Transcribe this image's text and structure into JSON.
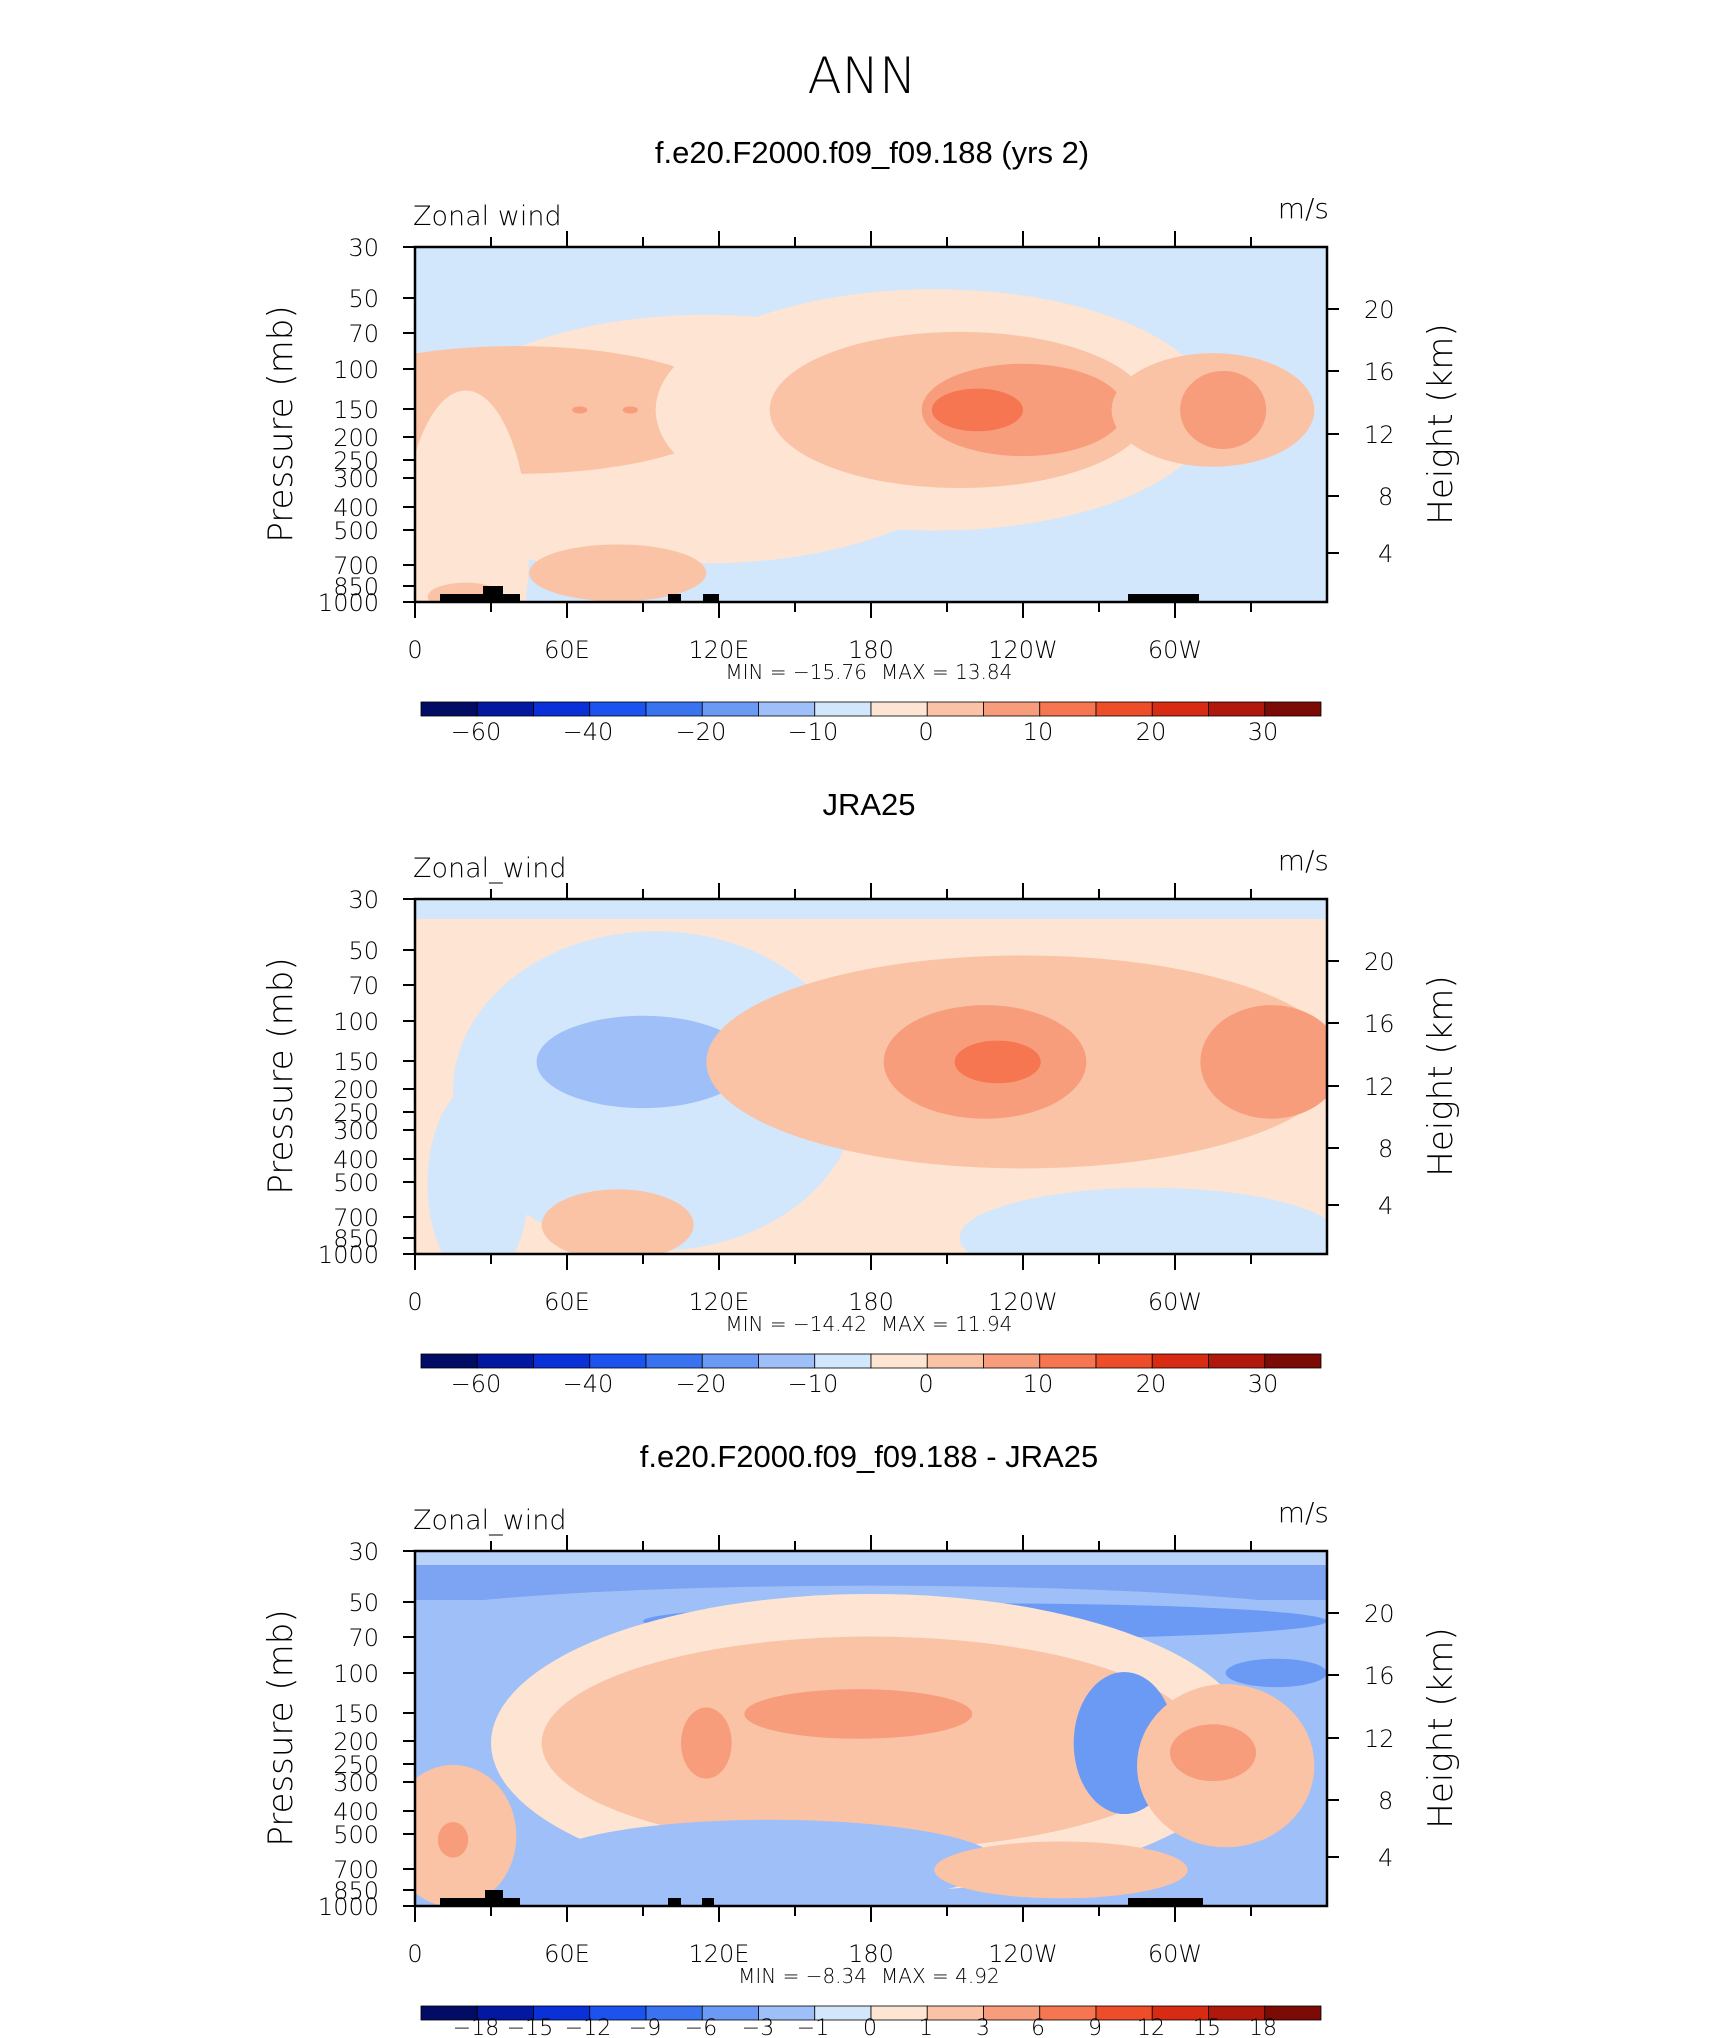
{
  "page_title": "ANN",
  "chart_data": [
    {
      "type": "heatmap",
      "title": "f.e20.F2000.f09_f09.188 (yrs 2)",
      "variable_label": "Zonal wind",
      "units": "m/s",
      "ylabel": "Pressure (mb)",
      "ylabel_right": "Height (km)",
      "x_ticks": [
        "0",
        "60E",
        "120E",
        "180",
        "120W",
        "60W"
      ],
      "y_ticks": [
        "30",
        "50",
        "70",
        "100",
        "150",
        "200",
        "250",
        "300",
        "400",
        "500",
        "700",
        "850",
        "1000"
      ],
      "y_ticks_right": [
        "20",
        "16",
        "12",
        "8",
        "4"
      ],
      "min": -15.76,
      "max": 13.84,
      "min_label": "MIN = −15.76",
      "max_label": "MAX = 13.84",
      "colorbar_labels": [
        "−60",
        "−40",
        "−20",
        "−10",
        "0",
        "10",
        "20",
        "30"
      ],
      "contour_fields": [
        {
          "level": 0,
          "longitude": 115,
          "pressure_mb": 200,
          "lon_width": 110,
          "pressure_depth": 0.35
        },
        {
          "level": 0,
          "longitude": 55,
          "pressure_mb": 400,
          "lon_width": 30,
          "pressure_depth": 0.15
        },
        {
          "level": 1,
          "longitude": 40,
          "pressure_mb": 150,
          "lon_width": 85,
          "pressure_depth": 0.18
        },
        {
          "level": 2,
          "longitude": 65,
          "pressure_mb": 150,
          "lon_width": 3,
          "pressure_depth": 0.01
        },
        {
          "level": 2,
          "longitude": 85,
          "pressure_mb": 150,
          "lon_width": 3,
          "pressure_depth": 0.01
        },
        {
          "level": 0,
          "longitude": 205,
          "pressure_mb": 150,
          "lon_width": 110,
          "pressure_depth": 0.34
        },
        {
          "level": 1,
          "longitude": 215,
          "pressure_mb": 150,
          "lon_width": 75,
          "pressure_depth": 0.22
        },
        {
          "level": 2,
          "longitude": 240,
          "pressure_mb": 150,
          "lon_width": 40,
          "pressure_depth": 0.13
        },
        {
          "level": 3,
          "longitude": 222,
          "pressure_mb": 150,
          "lon_width": 18,
          "pressure_depth": 0.06
        },
        {
          "level": 1,
          "longitude": 315,
          "pressure_mb": 150,
          "lon_width": 40,
          "pressure_depth": 0.16
        },
        {
          "level": 2,
          "longitude": 319,
          "pressure_mb": 150,
          "lon_width": 17,
          "pressure_depth": 0.11
        },
        {
          "level": 0,
          "longitude": 20,
          "pressure_mb": 600,
          "lon_width": 25,
          "pressure_depth": 0.45
        },
        {
          "level": 1,
          "longitude": 80,
          "pressure_mb": 750,
          "lon_width": 35,
          "pressure_depth": 0.08
        },
        {
          "level": 1,
          "longitude": 20,
          "pressure_mb": 950,
          "lon_width": 15,
          "pressure_depth": 0.04
        },
        {
          "level": -1,
          "longitude": 210,
          "pressure_mb": 850,
          "lon_width": 15,
          "pressure_depth": 0.02
        }
      ]
    },
    {
      "type": "heatmap",
      "title": "JRA25",
      "variable_label": "Zonal_wind",
      "units": "m/s",
      "ylabel": "Pressure (mb)",
      "ylabel_right": "Height (km)",
      "x_ticks": [
        "0",
        "60E",
        "120E",
        "180",
        "120W",
        "60W"
      ],
      "y_ticks": [
        "30",
        "50",
        "70",
        "100",
        "150",
        "200",
        "250",
        "300",
        "400",
        "500",
        "700",
        "850",
        "1000"
      ],
      "y_ticks_right": [
        "20",
        "16",
        "12",
        "8",
        "4"
      ],
      "min": -14.42,
      "max": 11.94,
      "min_label": "MIN = −14.42",
      "max_label": "MAX = 11.94",
      "colorbar_labels": [
        "−60",
        "−40",
        "−20",
        "−10",
        "0",
        "10",
        "20",
        "30"
      ],
      "contour_fields": [
        {
          "level": -1,
          "longitude": 95,
          "pressure_mb": 200,
          "lon_width": 80,
          "pressure_depth": 0.45
        },
        {
          "level": -1,
          "longitude": 25,
          "pressure_mb": 500,
          "lon_width": 20,
          "pressure_depth": 0.28
        },
        {
          "level": -2,
          "longitude": 90,
          "pressure_mb": 150,
          "lon_width": 42,
          "pressure_depth": 0.13
        },
        {
          "level": 1,
          "longitude": 240,
          "pressure_mb": 150,
          "lon_width": 125,
          "pressure_depth": 0.3
        },
        {
          "level": 2,
          "longitude": 225,
          "pressure_mb": 150,
          "lon_width": 40,
          "pressure_depth": 0.16
        },
        {
          "level": 3,
          "longitude": 230,
          "pressure_mb": 150,
          "lon_width": 17,
          "pressure_depth": 0.06
        },
        {
          "level": 2,
          "longitude": 338,
          "pressure_mb": 150,
          "lon_width": 28,
          "pressure_depth": 0.16
        },
        {
          "level": -1,
          "longitude": 290,
          "pressure_mb": 850,
          "lon_width": 75,
          "pressure_depth": 0.14
        },
        {
          "level": 1,
          "longitude": 80,
          "pressure_mb": 750,
          "lon_width": 30,
          "pressure_depth": 0.1
        }
      ]
    },
    {
      "type": "heatmap",
      "title": "f.e20.F2000.f09_f09.188 - JRA25",
      "variable_label": "Zonal_wind",
      "units": "m/s",
      "ylabel": "Pressure (mb)",
      "ylabel_right": "Height (km)",
      "x_ticks": [
        "0",
        "60E",
        "120E",
        "180",
        "120W",
        "60W"
      ],
      "y_ticks": [
        "30",
        "50",
        "70",
        "100",
        "150",
        "200",
        "250",
        "300",
        "400",
        "500",
        "700",
        "850",
        "1000"
      ],
      "y_ticks_right": [
        "20",
        "16",
        "12",
        "8",
        "4"
      ],
      "min": -8.34,
      "max": 4.92,
      "min_label": "MIN = −8.34",
      "max_label": "MAX = 4.92",
      "colorbar_labels": [
        "−18",
        "−15",
        "−12",
        "−9",
        "−6",
        "−3",
        "−1",
        "0",
        "1",
        "3",
        "6",
        "9",
        "12",
        "15",
        "18"
      ],
      "contour_fields": [
        {
          "level": -2,
          "longitude": 180,
          "pressure_mb": 60,
          "lon_width": 190,
          "pressure_depth": 0.1
        },
        {
          "level": -3,
          "longitude": 225,
          "pressure_mb": 60,
          "lon_width": 135,
          "pressure_depth": 0.05
        },
        {
          "level": -2,
          "longitude": 40,
          "pressure_mb": 200,
          "lon_width": 40,
          "pressure_depth": 0.22
        },
        {
          "level": 0,
          "longitude": 180,
          "pressure_mb": 200,
          "lon_width": 150,
          "pressure_depth": 0.42
        },
        {
          "level": 1,
          "longitude": 180,
          "pressure_mb": 200,
          "lon_width": 130,
          "pressure_depth": 0.3
        },
        {
          "level": 2,
          "longitude": 175,
          "pressure_mb": 150,
          "lon_width": 45,
          "pressure_depth": 0.07
        },
        {
          "level": 2,
          "longitude": 115,
          "pressure_mb": 200,
          "lon_width": 10,
          "pressure_depth": 0.1
        },
        {
          "level": -3,
          "longitude": 280,
          "pressure_mb": 200,
          "lon_width": 20,
          "pressure_depth": 0.2
        },
        {
          "level": -3,
          "longitude": 340,
          "pressure_mb": 100,
          "lon_width": 20,
          "pressure_depth": 0.04
        },
        {
          "level": 1,
          "longitude": 320,
          "pressure_mb": 250,
          "lon_width": 35,
          "pressure_depth": 0.23
        },
        {
          "level": 2,
          "longitude": 315,
          "pressure_mb": 220,
          "lon_width": 17,
          "pressure_depth": 0.08
        },
        {
          "level": -2,
          "longitude": 140,
          "pressure_mb": 650,
          "lon_width": 90,
          "pressure_depth": 0.12
        },
        {
          "level": 1,
          "longitude": 15,
          "pressure_mb": 500,
          "lon_width": 25,
          "pressure_depth": 0.2
        },
        {
          "level": 2,
          "longitude": 15,
          "pressure_mb": 520,
          "lon_width": 6,
          "pressure_depth": 0.05
        },
        {
          "level": 1,
          "longitude": 255,
          "pressure_mb": 700,
          "lon_width": 50,
          "pressure_depth": 0.08
        }
      ]
    }
  ]
}
